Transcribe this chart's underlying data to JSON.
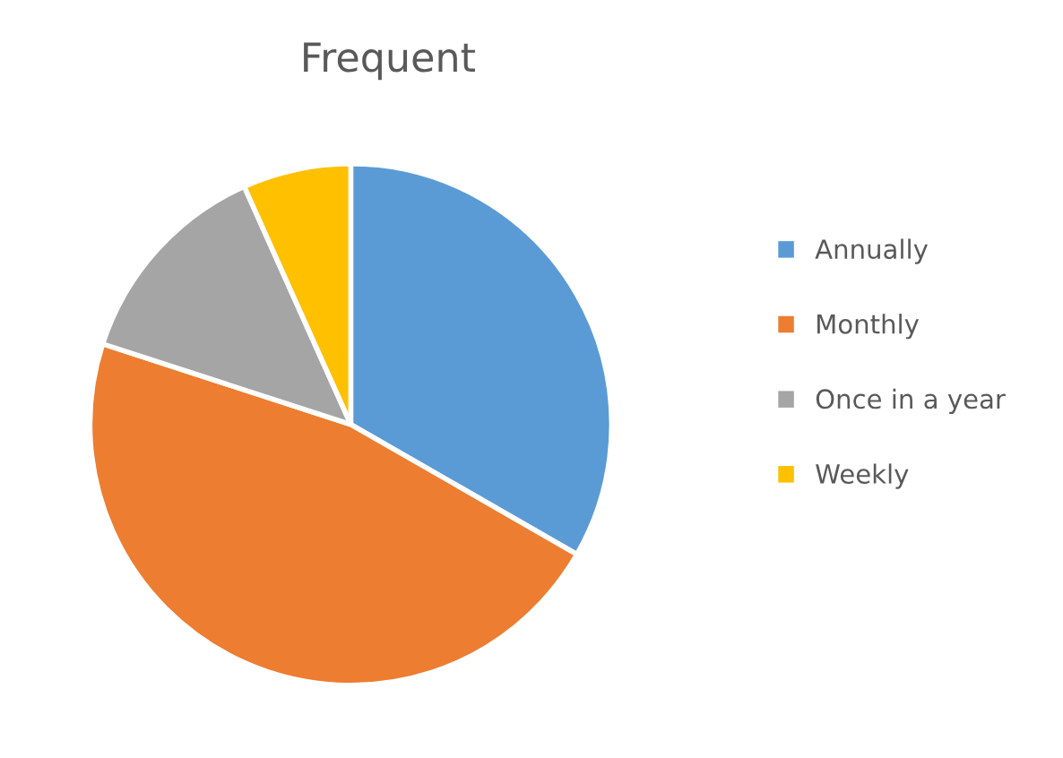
{
  "chart_data": {
    "type": "pie",
    "title": "Frequent",
    "categories": [
      "Annually",
      "Monthly",
      "Once in a year",
      "Weekly"
    ],
    "values": [
      33.3,
      46.7,
      13.3,
      6.7
    ],
    "colors": [
      "#5b9bd5",
      "#ed7d31",
      "#a5a5a5",
      "#ffc000"
    ],
    "legend": "right"
  }
}
